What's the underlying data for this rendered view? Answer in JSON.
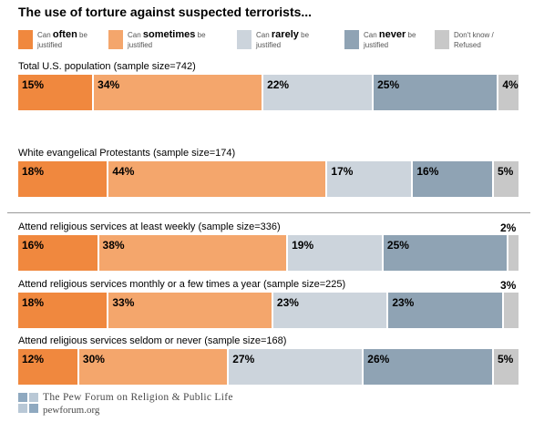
{
  "title": "The use of torture against suspected terrorists...",
  "legend": [
    {
      "pre": "Can ",
      "bold": "often",
      "post": " be justified",
      "color": "#f0883e"
    },
    {
      "pre": "Can ",
      "bold": "sometimes",
      "post": " be justified",
      "color": "#f4a66c"
    },
    {
      "pre": "Can ",
      "bold": "rarely",
      "post": " be justified",
      "color": "#ccd4dc"
    },
    {
      "pre": "Can ",
      "bold": "never",
      "post": " be justified",
      "color": "#8fa3b4"
    },
    {
      "pre": "Don't know / Refused",
      "bold": "",
      "post": "",
      "color": "#c8c8c8"
    }
  ],
  "footer": {
    "org": "The Pew Forum on Religion & Public Life",
    "url": "pewforum.org"
  },
  "chart_data": {
    "type": "bar",
    "orientation": "horizontal-stacked-100",
    "title": "The use of torture against suspected terrorists...",
    "series_names": [
      "Can often be justified",
      "Can sometimes be justified",
      "Can rarely be justified",
      "Can never be justified",
      "Don't know / Refused"
    ],
    "rows": [
      {
        "label": "Total U.S. population (sample size=742)",
        "values": [
          15,
          34,
          22,
          25,
          4
        ],
        "value_labels": [
          "15%",
          "34%",
          "22%",
          "25%",
          "4%"
        ]
      },
      {
        "label": "White evangelical Protestants (sample size=174)",
        "values": [
          18,
          44,
          17,
          16,
          5
        ],
        "value_labels": [
          "18%",
          "44%",
          "17%",
          "16%",
          "5%"
        ]
      },
      {
        "label": "Attend religious services at least weekly (sample size=336)",
        "values": [
          16,
          38,
          19,
          25,
          2
        ],
        "value_labels": [
          "16%",
          "38%",
          "19%",
          "25%",
          "2%"
        ]
      },
      {
        "label": "Attend religious services monthly or a few times a year (sample size=225)",
        "values": [
          18,
          33,
          23,
          23,
          3
        ],
        "value_labels": [
          "18%",
          "33%",
          "23%",
          "23%",
          "3%"
        ]
      },
      {
        "label": "Attend religious services seldom or never (sample size=168)",
        "values": [
          12,
          30,
          27,
          26,
          5
        ],
        "value_labels": [
          "12%",
          "30%",
          "27%",
          "26%",
          "5%"
        ]
      }
    ]
  }
}
